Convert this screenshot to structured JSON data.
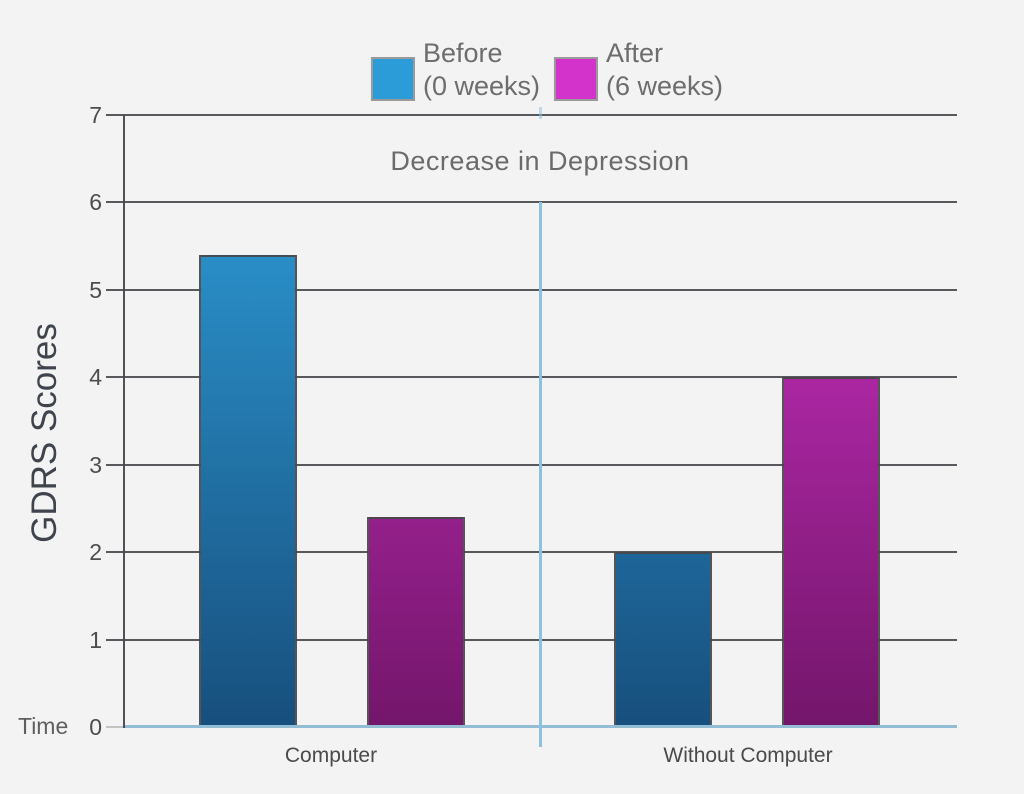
{
  "chart_data": {
    "type": "bar",
    "title": "Decrease in Depression",
    "ylabel": "GDRS Scores",
    "xlabel": "Time",
    "categories": [
      "Computer",
      "Without Computer"
    ],
    "series": [
      {
        "name": "Before (0 weeks)",
        "legend_line1": "Before",
        "legend_line2": "(0 weeks)",
        "values": [
          5.4,
          2.0
        ],
        "swatch_color": "#2b9cd8",
        "bar_gradient_top": "#2fa0dc",
        "bar_gradient_bottom": "#174f7d"
      },
      {
        "name": "After (6 weeks)",
        "legend_line1": "After",
        "legend_line2": "(6 weeks)",
        "values": [
          2.4,
          4.0
        ],
        "swatch_color": "#d433cb",
        "bar_gradient_top": "#d433cb",
        "bar_gradient_bottom": "#73166a"
      }
    ],
    "ylim": [
      0,
      7
    ],
    "yticks": [
      7,
      6,
      5,
      4,
      3,
      2,
      1,
      0
    ],
    "grid": true,
    "legend_position": "top",
    "colors": {
      "background": "#f3f3f3",
      "gridline": "#46484b",
      "baseline": "#93bdd4",
      "divider": "#8ac2e0",
      "title_text": "#6b6b6b",
      "axis_text": "#4d4d4d"
    }
  }
}
